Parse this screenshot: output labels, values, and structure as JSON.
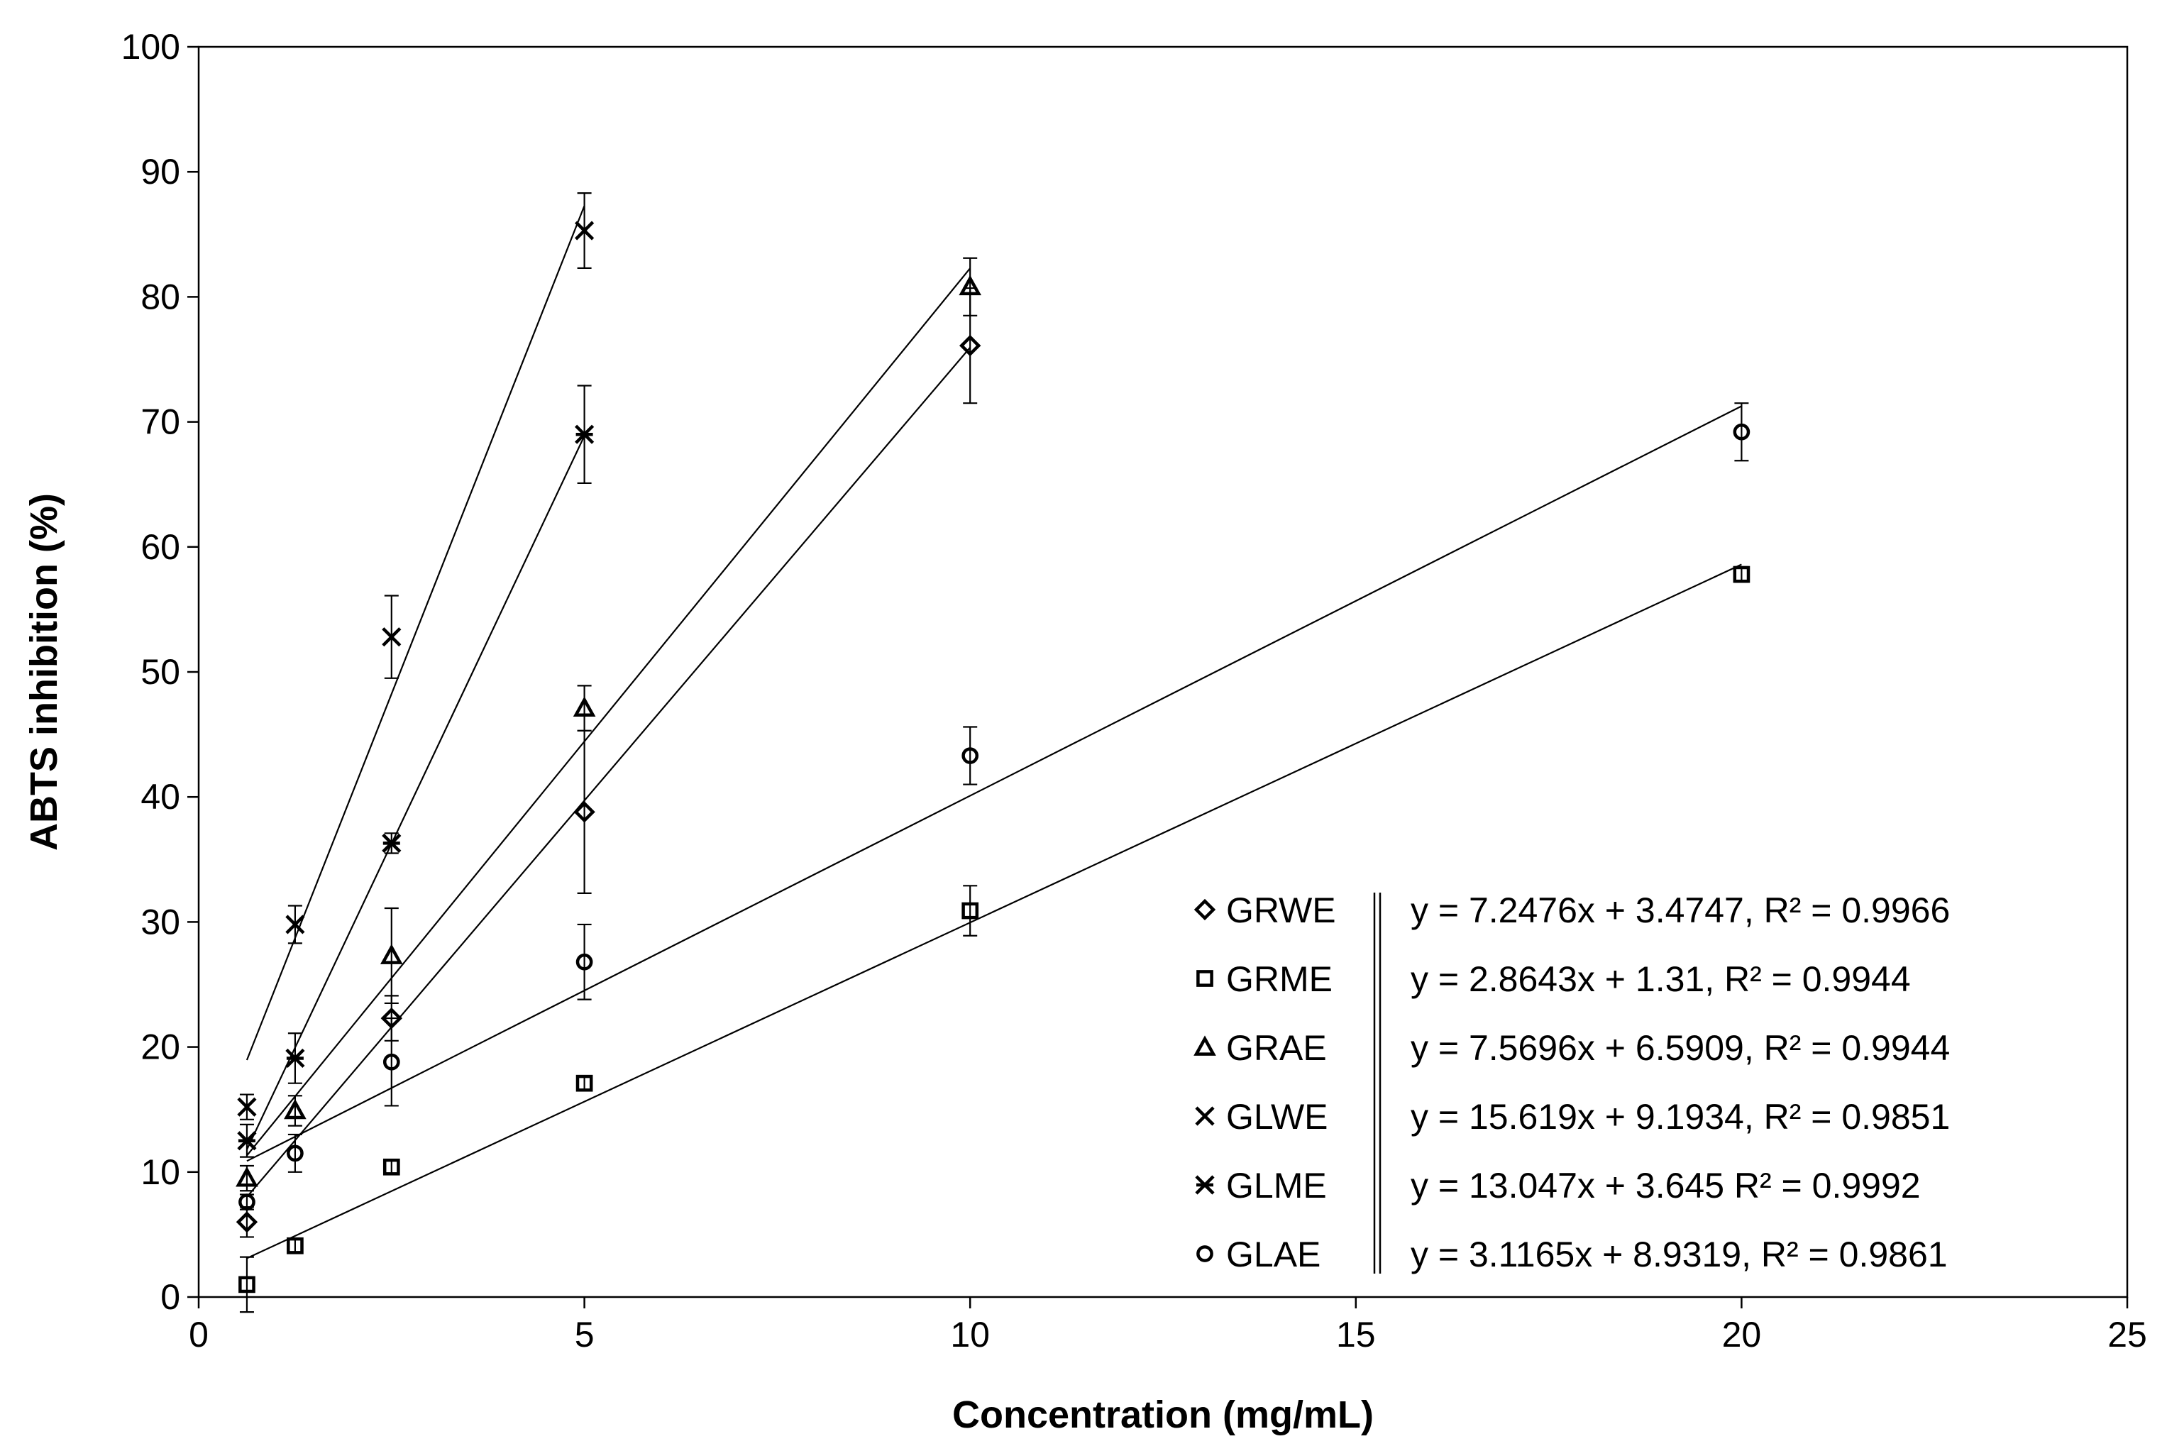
{
  "chart_data": {
    "type": "scatter",
    "xlabel": "Concentration (mg/mL)",
    "ylabel": "ABTS inhibition (%)",
    "xlim": [
      0,
      25
    ],
    "ylim": [
      0,
      100
    ],
    "xticks": [
      0,
      5,
      10,
      15,
      20,
      25
    ],
    "yticks": [
      0,
      10,
      20,
      30,
      40,
      50,
      60,
      70,
      80,
      90,
      100
    ],
    "grid": false,
    "legend_position": "bottom-right",
    "series": [
      {
        "name": "GRWE",
        "marker": "diamond",
        "equation": "y = 7.2476x + 3.4747, R² = 0.9966",
        "x": [
          0.625,
          2.5,
          5,
          10
        ],
        "y": [
          6.0,
          22.3,
          38.8,
          76.1
        ],
        "err": [
          1.2,
          1.8,
          6.5,
          4.6
        ],
        "fit": {
          "slope": 7.2476,
          "intercept": 3.4747,
          "x_range": [
            0.625,
            10
          ]
        }
      },
      {
        "name": "GRME",
        "marker": "square",
        "equation": "y = 2.8643x + 1.31, R² = 0.9944",
        "x": [
          0.625,
          1.25,
          2.5,
          5,
          10,
          20
        ],
        "y": [
          1.0,
          4.1,
          10.4,
          17.1,
          30.9,
          57.8
        ],
        "err": [
          2.2,
          0.6,
          0.6,
          0.6,
          2.0,
          0.6
        ],
        "fit": {
          "slope": 2.8643,
          "intercept": 1.31,
          "x_range": [
            0.625,
            20
          ]
        }
      },
      {
        "name": "GRAE",
        "marker": "triangle",
        "equation": "y = 7.5696x + 6.5909, R² = 0.9944",
        "x": [
          0.625,
          1.25,
          2.5,
          5,
          10
        ],
        "y": [
          9.5,
          14.9,
          27.3,
          47.1,
          80.8
        ],
        "err": [
          1.0,
          1.2,
          3.8,
          1.8,
          2.3
        ],
        "fit": {
          "slope": 7.5696,
          "intercept": 6.5909,
          "x_range": [
            0.625,
            10
          ]
        }
      },
      {
        "name": "GLWE",
        "marker": "x",
        "equation": "y = 15.619x + 9.1934, R² = 0.9851",
        "x": [
          0.625,
          1.25,
          2.5,
          5
        ],
        "y": [
          15.2,
          29.8,
          52.8,
          85.3
        ],
        "err": [
          1.0,
          1.5,
          3.3,
          3.0
        ],
        "fit": {
          "slope": 15.619,
          "intercept": 9.1934,
          "x_range": [
            0.625,
            5
          ]
        }
      },
      {
        "name": "GLME",
        "marker": "star",
        "equation": "y = 13.047x + 3.645 R² = 0.9992",
        "x": [
          0.625,
          1.25,
          2.5,
          5
        ],
        "y": [
          12.5,
          19.1,
          36.3,
          69.0
        ],
        "err": [
          1.3,
          2.0,
          0.8,
          3.9
        ],
        "fit": {
          "slope": 13.047,
          "intercept": 3.645,
          "x_range": [
            0.625,
            5
          ]
        }
      },
      {
        "name": "GLAE",
        "marker": "circle",
        "equation": "y = 3.1165x + 8.9319, R² = 0.9861",
        "x": [
          0.625,
          1.25,
          2.5,
          5,
          10,
          20
        ],
        "y": [
          7.6,
          11.5,
          18.8,
          26.8,
          43.3,
          69.2
        ],
        "err": [
          0.6,
          1.5,
          3.5,
          3.0,
          2.3,
          2.3
        ],
        "fit": {
          "slope": 3.1165,
          "intercept": 8.9319,
          "x_range": [
            0.625,
            20
          ]
        }
      }
    ]
  }
}
